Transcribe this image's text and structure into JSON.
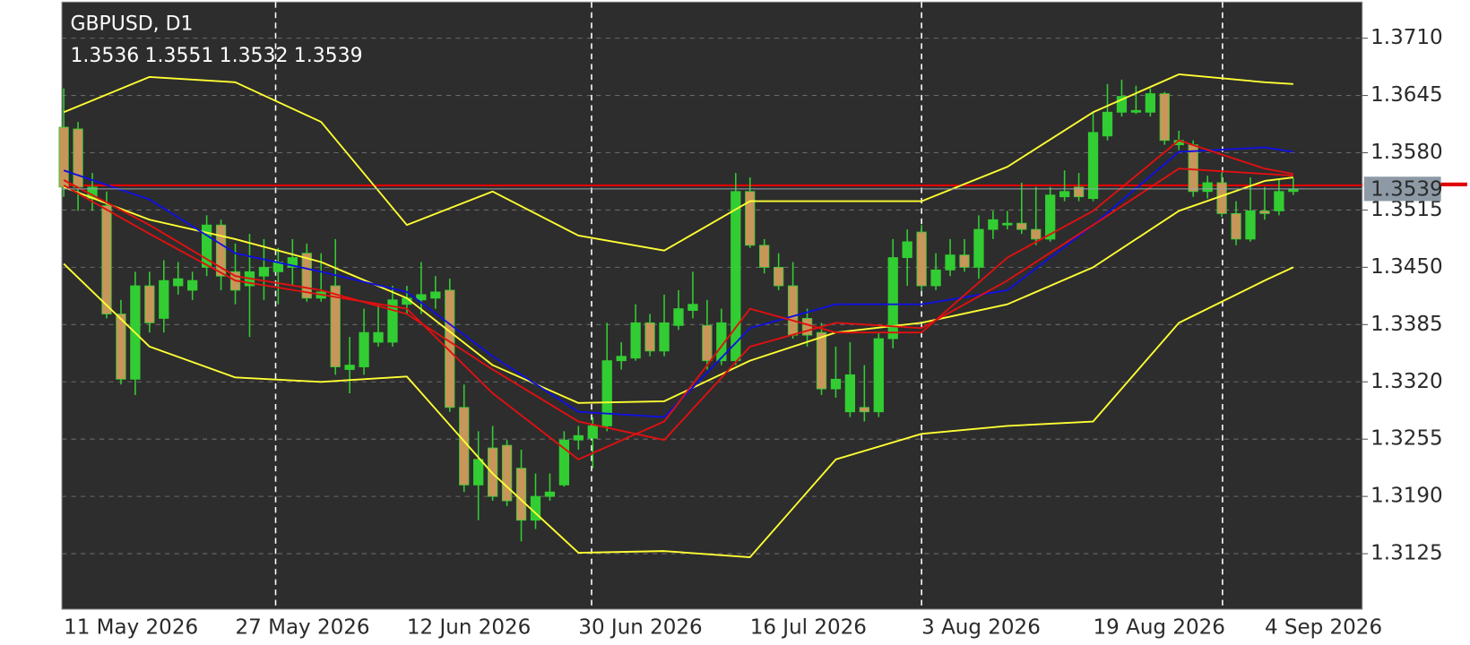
{
  "chart_data": {
    "type": "candlestick",
    "title": "GBPUSD, D1",
    "categories": [
      "11 May 2026",
      null,
      null,
      null,
      null,
      null,
      null,
      null,
      null,
      null,
      null,
      null,
      "27 May 2026",
      null,
      null,
      null,
      null,
      null,
      null,
      null,
      null,
      null,
      null,
      null,
      "12 Jun 2026",
      null,
      null,
      null,
      null,
      null,
      null,
      null,
      null,
      null,
      null,
      null,
      "30 Jun 2026",
      null,
      null,
      null,
      null,
      null,
      null,
      null,
      null,
      null,
      null,
      null,
      "16 Jul 2026",
      null,
      null,
      null,
      null,
      null,
      null,
      null,
      null,
      null,
      null,
      null,
      "3 Aug 2026",
      null,
      null,
      null,
      null,
      null,
      null,
      null,
      null,
      null,
      null,
      null,
      "19 Aug 2026",
      null,
      null,
      null,
      null,
      null,
      null,
      null,
      null,
      null,
      null,
      null,
      "4 Sep 2026",
      null,
      null
    ],
    "open": [
      1.3609,
      1.3607,
      1.3528,
      1.352,
      1.3397,
      1.3323,
      1.3429,
      1.3392,
      1.3429,
      1.3424,
      1.345,
      1.3498,
      1.3445,
      1.3429,
      1.344,
      1.3445,
      1.345,
      1.3466,
      1.3415,
      1.3429,
      1.3334,
      1.3337,
      1.3365,
      1.3365,
      1.3408,
      1.3413,
      1.3415,
      1.3424,
      1.3291,
      1.3203,
      1.3245,
      1.3248,
      1.3222,
      1.3163,
      1.319,
      1.3203,
      1.3254,
      1.3256,
      1.327,
      1.3344,
      1.3347,
      1.3387,
      1.3355,
      1.3384,
      1.3401,
      1.3384,
      1.3344,
      1.3344,
      1.3536,
      1.3475,
      1.345,
      1.3429,
      1.3392,
      1.3376,
      1.3312,
      1.3286,
      1.3291,
      1.3286,
      1.3369,
      1.3461,
      1.349,
      1.3429,
      1.3447,
      1.3464,
      1.345,
      1.3493,
      1.3498,
      1.35,
      1.3493,
      1.3482,
      1.353,
      1.3541,
      1.3528,
      1.3599,
      1.3626,
      1.3626,
      1.3626,
      1.3647,
      1.3589,
      1.3589,
      1.3536,
      1.3546,
      1.3511,
      1.3482,
      1.3514,
      1.3514,
      1.3536
    ],
    "high": [
      1.3653,
      1.3615,
      1.3557,
      1.3536,
      1.3413,
      1.3445,
      1.3445,
      1.3458,
      1.3456,
      1.3445,
      1.3509,
      1.3504,
      1.3477,
      1.3488,
      1.3482,
      1.3472,
      1.3482,
      1.3477,
      1.3466,
      1.3482,
      1.3371,
      1.3403,
      1.3408,
      1.3429,
      1.3429,
      1.3456,
      1.344,
      1.3437,
      1.3317,
      1.3264,
      1.327,
      1.3254,
      1.3243,
      1.3216,
      1.3216,
      1.3264,
      1.327,
      1.328,
      1.3387,
      1.3365,
      1.3408,
      1.3397,
      1.3419,
      1.3424,
      1.3445,
      1.3413,
      1.3403,
      1.3557,
      1.3552,
      1.3482,
      1.3466,
      1.3456,
      1.3403,
      1.3387,
      1.336,
      1.3365,
      1.3339,
      1.3376,
      1.3482,
      1.3493,
      1.3498,
      1.3466,
      1.3482,
      1.3482,
      1.3509,
      1.3514,
      1.3514,
      1.3546,
      1.3541,
      1.3541,
      1.356,
      1.3557,
      1.3626,
      1.3658,
      1.3663,
      1.3656,
      1.3653,
      1.3649,
      1.3605,
      1.3594,
      1.3554,
      1.3557,
      1.3525,
      1.3552,
      1.3541,
      1.3549,
      1.3551
    ],
    "low": [
      1.353,
      1.3514,
      1.3514,
      1.3392,
      1.3317,
      1.3305,
      1.3376,
      1.3376,
      1.3419,
      1.3413,
      1.344,
      1.3424,
      1.3408,
      1.3371,
      1.3413,
      1.3408,
      1.3429,
      1.3411,
      1.3411,
      1.3328,
      1.3307,
      1.3328,
      1.336,
      1.336,
      1.3397,
      1.3397,
      1.3403,
      1.3286,
      1.3195,
      1.3163,
      1.3185,
      1.3179,
      1.3139,
      1.3153,
      1.3185,
      1.3201,
      1.3243,
      1.3222,
      1.3264,
      1.3334,
      1.3344,
      1.3349,
      1.3349,
      1.3379,
      1.3392,
      1.3334,
      1.3339,
      1.3339,
      1.3472,
      1.3443,
      1.3424,
      1.3369,
      1.336,
      1.3305,
      1.3302,
      1.328,
      1.3275,
      1.328,
      1.3358,
      1.3429,
      1.3424,
      1.3424,
      1.344,
      1.3445,
      1.3437,
      1.3482,
      1.3493,
      1.3488,
      1.3475,
      1.3479,
      1.3525,
      1.3525,
      1.3525,
      1.3594,
      1.3621,
      1.3624,
      1.3621,
      1.3589,
      1.3583,
      1.353,
      1.3528,
      1.3507,
      1.3475,
      1.3479,
      1.3504,
      1.3509,
      1.3532
    ],
    "close": [
      1.3541,
      1.3541,
      1.3541,
      1.3397,
      1.3323,
      1.3429,
      1.3387,
      1.3435,
      1.3437,
      1.3435,
      1.3498,
      1.344,
      1.3424,
      1.3445,
      1.345,
      1.3456,
      1.3461,
      1.3415,
      1.3422,
      1.3337,
      1.3339,
      1.3376,
      1.3376,
      1.3413,
      1.3415,
      1.3419,
      1.3422,
      1.3291,
      1.3203,
      1.3232,
      1.319,
      1.3185,
      1.3163,
      1.319,
      1.3195,
      1.3254,
      1.3259,
      1.327,
      1.3344,
      1.3349,
      1.3387,
      1.3355,
      1.3387,
      1.3403,
      1.3408,
      1.3344,
      1.3387,
      1.3536,
      1.3475,
      1.345,
      1.3429,
      1.3373,
      1.3373,
      1.3312,
      1.3323,
      1.3328,
      1.3286,
      1.3369,
      1.3461,
      1.3479,
      1.3429,
      1.3447,
      1.3464,
      1.345,
      1.3493,
      1.3504,
      1.35,
      1.3493,
      1.3482,
      1.3532,
      1.3536,
      1.353,
      1.3603,
      1.3626,
      1.3644,
      1.3628,
      1.3647,
      1.3594,
      1.3594,
      1.3536,
      1.3546,
      1.3511,
      1.3482,
      1.3514,
      1.3511,
      1.3536,
      1.3539
    ],
    "up_color": "#32cd32",
    "down_color": "#c8965a",
    "indicators": [
      {
        "color": "#ffff33",
        "x": [
          0,
          6,
          12,
          18,
          24,
          30,
          36,
          42,
          48,
          54,
          60,
          66,
          72,
          78,
          84,
          86
        ],
        "values": [
          1.3626,
          1.3666,
          1.366,
          1.3615,
          1.3498,
          1.3536,
          1.3486,
          1.3469,
          1.3525,
          1.3525,
          1.3525,
          1.3564,
          1.3626,
          1.3669,
          1.366,
          1.3658
        ]
      },
      {
        "color": "#ffff33",
        "x": [
          0,
          6,
          12,
          18,
          24,
          30,
          36,
          42,
          48,
          54,
          60,
          66,
          72,
          78,
          84,
          86
        ],
        "values": [
          1.3541,
          1.3504,
          1.3482,
          1.3456,
          1.3415,
          1.3339,
          1.3296,
          1.3298,
          1.3344,
          1.3376,
          1.3387,
          1.3408,
          1.345,
          1.3514,
          1.3548,
          1.3552
        ]
      },
      {
        "color": "#ffff33",
        "x": [
          0,
          6,
          12,
          18,
          24,
          30,
          36,
          42,
          48,
          54,
          60,
          66,
          72,
          78,
          84,
          86
        ],
        "values": [
          1.3454,
          1.336,
          1.3325,
          1.332,
          1.3326,
          1.3216,
          1.3126,
          1.3128,
          1.3121,
          1.3232,
          1.3261,
          1.327,
          1.3275,
          1.3387,
          1.3435,
          1.345
        ]
      },
      {
        "color": "#1010e0",
        "x": [
          0,
          6,
          12,
          18,
          24,
          30,
          36,
          42,
          48,
          54,
          60,
          66,
          72,
          78,
          84,
          86
        ],
        "values": [
          1.356,
          1.3527,
          1.3466,
          1.3445,
          1.3422,
          1.3349,
          1.3286,
          1.328,
          1.3381,
          1.3408,
          1.3408,
          1.3424,
          1.3498,
          1.3581,
          1.3586,
          1.3581
        ]
      },
      {
        "color": "#e01010",
        "x": [
          0,
          6,
          12,
          18,
          24,
          30,
          36,
          42,
          48,
          54,
          60,
          66,
          72,
          78,
          84,
          86
        ],
        "values": [
          1.3549,
          1.3498,
          1.344,
          1.3424,
          1.3397,
          1.3334,
          1.3275,
          1.3254,
          1.336,
          1.3387,
          1.3381,
          1.3435,
          1.3498,
          1.3562,
          1.3556,
          1.3554
        ]
      },
      {
        "color": "#e01010",
        "x": [
          0,
          6,
          12,
          18,
          24,
          30,
          36,
          42,
          48,
          54,
          60,
          66,
          72,
          78,
          84,
          86
        ],
        "values": [
          1.3543,
          1.3488,
          1.3435,
          1.3419,
          1.3403,
          1.3307,
          1.3232,
          1.3275,
          1.3403,
          1.3376,
          1.3376,
          1.3461,
          1.3514,
          1.3594,
          1.3562,
          1.3556
        ]
      }
    ],
    "hline": {
      "value": 1.3543,
      "color": "#e00000"
    },
    "ylim": [
      1.3062,
      1.3751
    ],
    "yticks": [
      {
        "value": 1.371,
        "label": "1.3710"
      },
      1.3645,
      {
        "value": 1.358,
        "label": "1.3580"
      },
      1.3515,
      {
        "value": 1.345,
        "label": "1.3450"
      },
      1.3385,
      {
        "value": 1.332,
        "label": "1.3320"
      },
      1.3255,
      {
        "value": 1.319,
        "label": "1.3190"
      },
      1.3125
    ],
    "grid": true
  }
}
